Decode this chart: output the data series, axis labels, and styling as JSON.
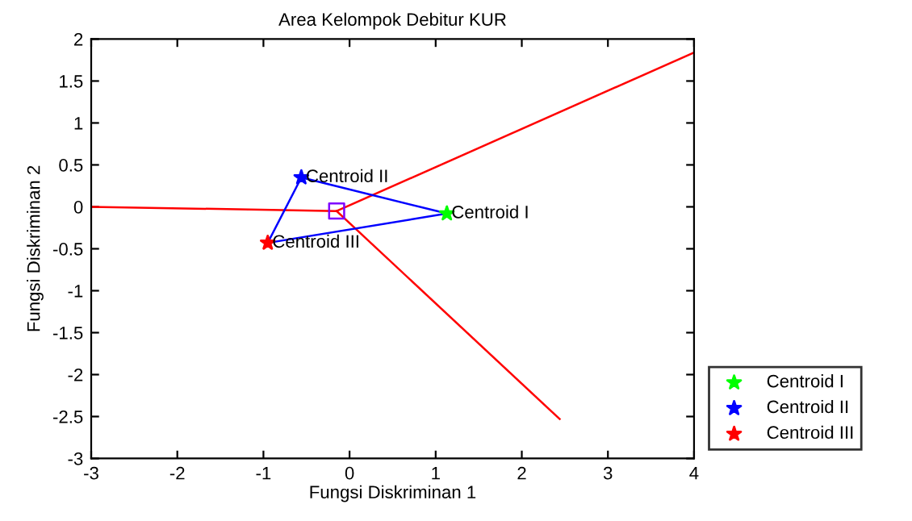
{
  "chart_data": {
    "type": "scatter",
    "title": "Area Kelompok Debitur KUR",
    "xlabel": "Fungsi Diskriminan 1",
    "ylabel": "Fungsi Diskriminan 2",
    "series": [
      {
        "type": "line",
        "color": "#ff0000",
        "x": [
          -0.15,
          -3
        ],
        "values": [
          -0.05,
          0.0
        ],
        "marker": "none"
      },
      {
        "type": "line",
        "color": "#ff0000",
        "x": [
          -0.15,
          4
        ],
        "values": [
          -0.05,
          1.84
        ],
        "marker": "none"
      },
      {
        "type": "line",
        "color": "#ff0000",
        "x": [
          -0.15,
          2.44
        ],
        "values": [
          -0.05,
          -2.53
        ],
        "marker": "none"
      },
      {
        "type": "line",
        "color": "#0000ff",
        "x": [
          -0.56,
          1.13
        ],
        "values": [
          0.35,
          -0.08
        ],
        "marker": "none"
      },
      {
        "type": "line",
        "color": "#0000ff",
        "x": [
          -0.95,
          -0.56
        ],
        "values": [
          -0.43,
          0.35
        ],
        "marker": "none"
      },
      {
        "type": "line",
        "color": "#0000ff",
        "x": [
          -0.95,
          1.13
        ],
        "values": [
          -0.43,
          -0.08
        ],
        "marker": "none"
      },
      {
        "color": "#7f00ff",
        "x": [
          -0.15
        ],
        "values": [
          -0.05
        ],
        "marker": "square"
      },
      {
        "name": "Centroid I",
        "color": "#00ff00",
        "x": [
          1.13
        ],
        "values": [
          -0.08
        ],
        "marker": "star"
      },
      {
        "name": "Centroid II",
        "color": "#0000ff",
        "x": [
          -0.56
        ],
        "values": [
          0.35
        ],
        "marker": "star"
      },
      {
        "name": "Centroid III",
        "color": "#ff0000",
        "x": [
          -0.95
        ],
        "values": [
          -0.43
        ],
        "marker": "star"
      }
    ],
    "annotations": [
      {
        "text": "Centroid I",
        "x": 1.13,
        "y": -0.08
      },
      {
        "text": "Centroid II",
        "x": -0.56,
        "y": 0.35
      },
      {
        "text": "Centroid III",
        "x": -0.95,
        "y": -0.43
      }
    ],
    "xlim": [
      -3,
      4
    ],
    "xticks": [
      -3,
      -2,
      -1,
      0,
      1,
      2,
      3,
      4
    ],
    "ylim": [
      -3,
      2
    ],
    "yticks": [
      -3,
      -2.5,
      -2,
      -1.5,
      -1,
      -0.5,
      0,
      0.5,
      1,
      1.5,
      2
    ],
    "grid": false,
    "legend": "bottom right"
  }
}
